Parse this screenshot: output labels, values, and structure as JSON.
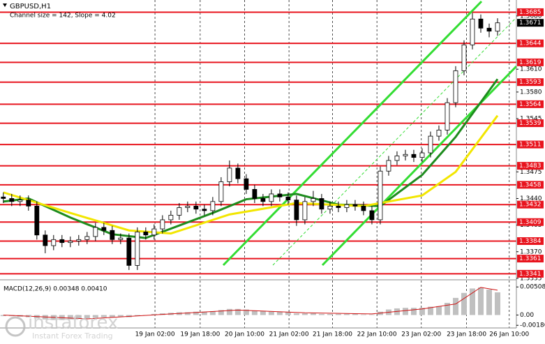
{
  "chart_data": [
    {
      "type": "candlestick",
      "title": "GBPUSD,H1",
      "subtitle": "Channel size = 142, Slope = 4.02",
      "open": [
        1.3442,
        1.344,
        1.3436,
        1.3438,
        1.343,
        1.3392,
        1.3378,
        1.3386,
        1.3382,
        1.3384,
        1.3386,
        1.339,
        1.3402,
        1.3398,
        1.3386,
        1.3388,
        1.3352,
        1.3396,
        1.3392,
        1.34,
        1.3412,
        1.3418,
        1.3428,
        1.343,
        1.3426,
        1.3424,
        1.3436,
        1.3462,
        1.348,
        1.3466,
        1.3452,
        1.344,
        1.3436,
        1.3446,
        1.3442,
        1.3438,
        1.3412,
        1.3436,
        1.344,
        1.3426,
        1.343,
        1.3428,
        1.3432,
        1.343,
        1.3424,
        1.3412,
        1.3476,
        1.349,
        1.3496,
        1.3498,
        1.3494,
        1.35,
        1.3522,
        1.353,
        1.3566,
        1.3608,
        1.3642,
        1.3676,
        1.3664,
        1.366
      ],
      "high": [
        1.3448,
        1.3446,
        1.3444,
        1.3444,
        1.3436,
        1.3398,
        1.3392,
        1.3392,
        1.339,
        1.3392,
        1.3396,
        1.3408,
        1.3408,
        1.3404,
        1.3394,
        1.3394,
        1.3402,
        1.3402,
        1.3406,
        1.3418,
        1.3424,
        1.3434,
        1.3436,
        1.3436,
        1.3432,
        1.3442,
        1.3468,
        1.349,
        1.3486,
        1.3472,
        1.3458,
        1.3446,
        1.3452,
        1.3452,
        1.3448,
        1.3444,
        1.3442,
        1.345,
        1.3446,
        1.3436,
        1.3436,
        1.3438,
        1.3438,
        1.3436,
        1.343,
        1.3482,
        1.3496,
        1.3502,
        1.3504,
        1.3504,
        1.3506,
        1.3528,
        1.3536,
        1.3572,
        1.3614,
        1.3648,
        1.3684,
        1.3682,
        1.367,
        1.3677
      ],
      "low": [
        1.3434,
        1.343,
        1.343,
        1.3424,
        1.3386,
        1.3368,
        1.3372,
        1.3376,
        1.3376,
        1.3378,
        1.338,
        1.3384,
        1.3392,
        1.338,
        1.338,
        1.3346,
        1.3346,
        1.3386,
        1.3386,
        1.3394,
        1.3406,
        1.3412,
        1.3422,
        1.342,
        1.3418,
        1.3418,
        1.343,
        1.3456,
        1.346,
        1.3446,
        1.3434,
        1.343,
        1.343,
        1.3436,
        1.3432,
        1.3404,
        1.3406,
        1.343,
        1.342,
        1.342,
        1.3422,
        1.3422,
        1.3424,
        1.3418,
        1.3406,
        1.3406,
        1.347,
        1.3484,
        1.349,
        1.3488,
        1.3488,
        1.3494,
        1.3516,
        1.3524,
        1.356,
        1.3602,
        1.3636,
        1.3658,
        1.3652,
        1.3654
      ],
      "close": [
        1.344,
        1.3436,
        1.3438,
        1.343,
        1.3392,
        1.3378,
        1.3386,
        1.3382,
        1.3384,
        1.3386,
        1.339,
        1.3402,
        1.3398,
        1.3386,
        1.3388,
        1.3352,
        1.3396,
        1.3392,
        1.34,
        1.3412,
        1.3418,
        1.3428,
        1.343,
        1.3426,
        1.3424,
        1.3436,
        1.3462,
        1.348,
        1.3466,
        1.3452,
        1.344,
        1.3436,
        1.3446,
        1.3442,
        1.3438,
        1.3412,
        1.3436,
        1.344,
        1.3426,
        1.343,
        1.3428,
        1.3432,
        1.343,
        1.3424,
        1.3412,
        1.3476,
        1.349,
        1.3496,
        1.3498,
        1.3494,
        1.35,
        1.3522,
        1.353,
        1.3566,
        1.3608,
        1.3642,
        1.3676,
        1.3664,
        1.366,
        1.3671
      ],
      "moving_averages": [
        {
          "color": "#1e8c1e",
          "x": [
            0,
            3,
            8,
            13,
            17,
            25,
            29,
            35,
            40,
            45,
            50,
            54,
            59
          ],
          "values": [
            1.3436,
            1.344,
            1.3415,
            1.3393,
            1.3388,
            1.3421,
            1.3439,
            1.3446,
            1.3432,
            1.343,
            1.3471,
            1.3521,
            1.3597
          ]
        },
        {
          "color": "#f2e600",
          "x": [
            0,
            8,
            15,
            20,
            27,
            35,
            43,
            50,
            54,
            59
          ],
          "values": [
            1.3448,
            1.3421,
            1.3398,
            1.3394,
            1.3419,
            1.3434,
            1.343,
            1.3444,
            1.3475,
            1.3549
          ]
        }
      ],
      "levels": [
        1.3685,
        1.3644,
        1.3619,
        1.3593,
        1.3564,
        1.3539,
        1.3511,
        1.3483,
        1.3458,
        1.3432,
        1.3409,
        1.3384,
        1.3361,
        1.3341
      ],
      "level_color": "#e8141e",
      "last_price": 1.3671,
      "ylim": [
        1.3334,
        1.3701
      ],
      "yticks": [
        {
          "value": 1.368,
          "label": "1.3680"
        },
        {
          "value": 1.361,
          "label": "1.3610"
        },
        {
          "value": 1.358,
          "label": "1.3580"
        },
        1.3545,
        1.3475,
        {
          "value": 1.344,
          "label": "1.3440"
        },
        1.3405,
        {
          "value": 1.337,
          "label": "1.3370"
        },
        1.3335
      ],
      "xlim": [
        -0.4,
        61.25
      ],
      "xticks": [
        {
          "value": 18.1,
          "label": "19 Jan 02:00"
        },
        {
          "value": 23.5,
          "label": "19 Jan 18:00"
        },
        {
          "value": 28.8,
          "label": "20 Jan 10:00"
        },
        {
          "value": 34.1,
          "label": "21 Jan 02:00"
        },
        {
          "value": 39.3,
          "label": "21 Jan 18:00"
        },
        {
          "value": 44.6,
          "label": "22 Jan 10:00"
        },
        {
          "value": 49.9,
          "label": "23 Jan 02:00"
        },
        {
          "value": 55.3,
          "label": "23 Jan 18:00"
        },
        {
          "value": 60.4,
          "label": "26 Jan 10:00"
        }
      ],
      "grid": true
    },
    {
      "type": "macd",
      "title": "MACD(12,26,9) 0.00348 0.00410",
      "values": [
        -0.0002,
        -0.0002,
        -0.0003,
        -0.0004,
        -0.0006,
        -0.0008,
        -0.0009,
        -0.0009,
        -0.0008,
        -0.0007,
        -0.0006,
        -0.0005,
        -0.0004,
        -0.0004,
        -0.0003,
        -0.0004,
        -0.0002,
        0.0,
        0.0002,
        0.0003,
        0.0004,
        0.0005,
        0.0005,
        0.0006,
        0.0006,
        0.0007,
        0.0009,
        0.0011,
        0.0011,
        0.001,
        0.0008,
        0.0007,
        0.0006,
        0.0006,
        0.0005,
        0.0003,
        0.0003,
        0.0003,
        0.0002,
        0.0002,
        0.0002,
        0.0002,
        0.0002,
        0.0001,
        0.0001,
        0.0006,
        0.001,
        0.0012,
        0.0013,
        0.0013,
        0.0013,
        0.0015,
        0.0016,
        0.0022,
        0.0031,
        0.004,
        0.0048,
        0.005,
        0.0046,
        0.0041
      ],
      "color": "#c0c0c0",
      "signal": {
        "color": "#d01010",
        "x": [
          0,
          10,
          20,
          28,
          36,
          44,
          50,
          54,
          57,
          59
        ],
        "values": [
          0.0,
          -0.0007,
          0.0002,
          0.0009,
          0.0004,
          0.0002,
          0.0011,
          0.002,
          0.005,
          0.0045
        ]
      },
      "ylim": [
        -0.00234,
        0.00612
      ],
      "yticks": [
        0.00508,
        {
          "value": 0,
          "label": "0.00"
        },
        -0.00186
      ]
    }
  ],
  "watermark": {
    "brand": "instaforex",
    "tagline": "Instant Forex Trading"
  }
}
